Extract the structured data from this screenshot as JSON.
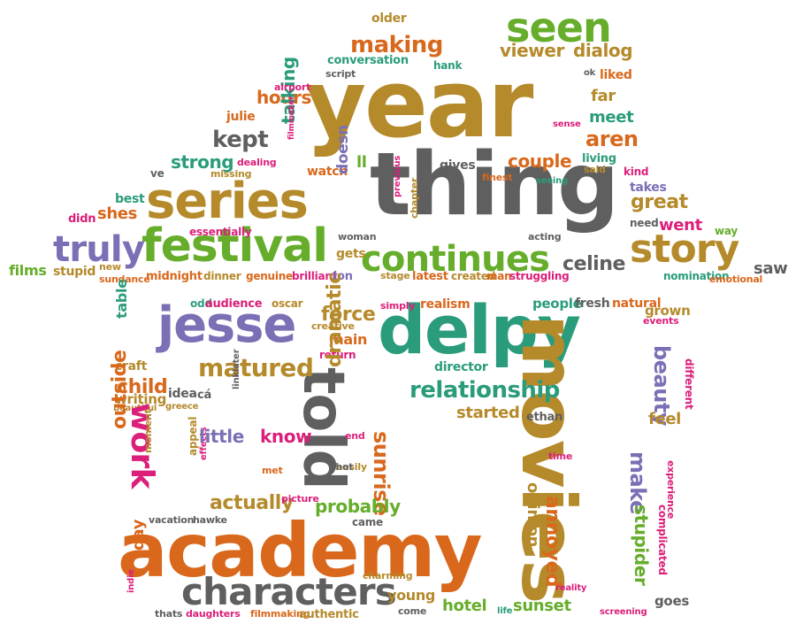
{
  "palette": {
    "olive": "#b58a2b",
    "orange": "#d9681c",
    "green": "#65ad2a",
    "purple": "#7b6fb5",
    "teal": "#2a9c7c",
    "gray": "#5f5f5f",
    "pink": "#dc1f7a"
  },
  "words": [
    {
      "text": "year",
      "color": "olive"
    },
    {
      "text": "thing",
      "color": "gray"
    },
    {
      "text": "series",
      "color": "olive"
    },
    {
      "text": "festival",
      "color": "green"
    },
    {
      "text": "truly",
      "color": "purple"
    },
    {
      "text": "continues",
      "color": "green"
    },
    {
      "text": "story",
      "color": "olive"
    },
    {
      "text": "seen",
      "color": "green"
    },
    {
      "text": "making",
      "color": "orange"
    },
    {
      "text": "viewer",
      "color": "olive"
    },
    {
      "text": "dialog",
      "color": "olive"
    },
    {
      "text": "hours",
      "color": "orange"
    },
    {
      "text": "kept",
      "color": "gray"
    },
    {
      "text": "strong",
      "color": "teal"
    },
    {
      "text": "talking",
      "color": "teal"
    },
    {
      "text": "aren",
      "color": "orange"
    },
    {
      "text": "far",
      "color": "olive"
    },
    {
      "text": "meet",
      "color": "teal"
    },
    {
      "text": "couple",
      "color": "orange"
    },
    {
      "text": "great",
      "color": "olive"
    },
    {
      "text": "went",
      "color": "pink"
    },
    {
      "text": "shes",
      "color": "orange"
    },
    {
      "text": "celine",
      "color": "gray"
    },
    {
      "text": "saw",
      "color": "gray"
    },
    {
      "text": "films",
      "color": "green"
    },
    {
      "text": "stupid",
      "color": "olive"
    },
    {
      "text": "older",
      "color": "olive"
    },
    {
      "text": "conversation",
      "color": "teal"
    },
    {
      "text": "hank",
      "color": "teal"
    },
    {
      "text": "script",
      "color": "gray"
    },
    {
      "text": "liked",
      "color": "orange"
    },
    {
      "text": "ok",
      "color": "gray"
    },
    {
      "text": "airport",
      "color": "pink"
    },
    {
      "text": "julie",
      "color": "orange"
    },
    {
      "text": "watch",
      "color": "orange"
    },
    {
      "text": "ll",
      "color": "green"
    },
    {
      "text": "gives",
      "color": "gray"
    },
    {
      "text": "doesn",
      "color": "purple"
    },
    {
      "text": "living",
      "color": "teal"
    },
    {
      "text": "said",
      "color": "olive"
    },
    {
      "text": "kind",
      "color": "pink"
    },
    {
      "text": "sense",
      "color": "pink"
    },
    {
      "text": "takes",
      "color": "purple"
    },
    {
      "text": "need",
      "color": "gray"
    },
    {
      "text": "way",
      "color": "green"
    },
    {
      "text": "ve",
      "color": "gray"
    },
    {
      "text": "dealing",
      "color": "pink"
    },
    {
      "text": "missing",
      "color": "olive"
    },
    {
      "text": "filmmaker",
      "color": "pink"
    },
    {
      "text": "best",
      "color": "teal"
    },
    {
      "text": "didn",
      "color": "pink"
    },
    {
      "text": "essentially",
      "color": "pink"
    },
    {
      "text": "new",
      "color": "olive"
    },
    {
      "text": "sundance",
      "color": "orange"
    },
    {
      "text": "midnight",
      "color": "orange"
    },
    {
      "text": "dinner",
      "color": "olive"
    },
    {
      "text": "genuine",
      "color": "orange"
    },
    {
      "text": "brilliant",
      "color": "pink"
    },
    {
      "text": "don",
      "color": "purple"
    },
    {
      "text": "stage",
      "color": "olive"
    },
    {
      "text": "latest",
      "color": "orange"
    },
    {
      "text": "created",
      "color": "olive"
    },
    {
      "text": "man",
      "color": "orange"
    },
    {
      "text": "struggling",
      "color": "pink"
    },
    {
      "text": "nomination",
      "color": "teal"
    },
    {
      "text": "emotional",
      "color": "orange"
    },
    {
      "text": "finest",
      "color": "orange"
    },
    {
      "text": "seeing",
      "color": "teal"
    },
    {
      "text": "previous",
      "color": "pink"
    },
    {
      "text": "chapter",
      "color": "olive"
    },
    {
      "text": "woman",
      "color": "gray"
    },
    {
      "text": "gets",
      "color": "olive"
    },
    {
      "text": "acting",
      "color": "gray"
    },
    {
      "text": "jesse",
      "color": "purple"
    },
    {
      "text": "delpy",
      "color": "teal"
    },
    {
      "text": "movies",
      "color": "olive"
    },
    {
      "text": "told",
      "color": "gray"
    },
    {
      "text": "matured",
      "color": "olive"
    },
    {
      "text": "relationship",
      "color": "teal"
    },
    {
      "text": "force",
      "color": "olive"
    },
    {
      "text": "main",
      "color": "orange"
    },
    {
      "text": "return",
      "color": "pink"
    },
    {
      "text": "realism",
      "color": "orange"
    },
    {
      "text": "simply",
      "color": "pink"
    },
    {
      "text": "creative",
      "color": "olive"
    },
    {
      "text": "people",
      "color": "teal"
    },
    {
      "text": "fresh",
      "color": "gray"
    },
    {
      "text": "natural",
      "color": "orange"
    },
    {
      "text": "grown",
      "color": "olive"
    },
    {
      "text": "events",
      "color": "pink"
    },
    {
      "text": "beauty",
      "color": "purple"
    },
    {
      "text": "different",
      "color": "pink"
    },
    {
      "text": "director",
      "color": "teal"
    },
    {
      "text": "started",
      "color": "olive"
    },
    {
      "text": "ethan",
      "color": "gray"
    },
    {
      "text": "feel",
      "color": "olive"
    },
    {
      "text": "make",
      "color": "purple"
    },
    {
      "text": "stupider",
      "color": "green"
    },
    {
      "text": "complicated",
      "color": "pink"
    },
    {
      "text": "experience",
      "color": "pink"
    },
    {
      "text": "time",
      "color": "pink"
    },
    {
      "text": "opinion",
      "color": "olive"
    },
    {
      "text": "annoyed",
      "color": "orange"
    },
    {
      "text": "table",
      "color": "teal"
    },
    {
      "text": "craft",
      "color": "olive"
    },
    {
      "text": "child",
      "color": "orange"
    },
    {
      "text": "writing",
      "color": "olive"
    },
    {
      "text": "beautiful",
      "color": "olive"
    },
    {
      "text": "idea",
      "color": "gray"
    },
    {
      "text": "greece",
      "color": "olive"
    },
    {
      "text": "cá",
      "color": "gray"
    },
    {
      "text": "linklater",
      "color": "gray"
    },
    {
      "text": "odd",
      "color": "teal"
    },
    {
      "text": "audience",
      "color": "pink"
    },
    {
      "text": "oscar",
      "color": "olive"
    },
    {
      "text": "work",
      "color": "pink"
    },
    {
      "text": "outside",
      "color": "orange"
    },
    {
      "text": "moment",
      "color": "olive"
    },
    {
      "text": "appeal",
      "color": "olive"
    },
    {
      "text": "effects",
      "color": "pink"
    },
    {
      "text": "little",
      "color": "purple"
    },
    {
      "text": "know",
      "color": "pink"
    },
    {
      "text": "dramatic",
      "color": "olive"
    },
    {
      "text": "end",
      "color": "pink"
    },
    {
      "text": "easily",
      "color": "olive"
    },
    {
      "text": "sunrise",
      "color": "orange"
    },
    {
      "text": "met",
      "color": "orange"
    },
    {
      "text": "actually",
      "color": "olive"
    },
    {
      "text": "picture",
      "color": "pink"
    },
    {
      "text": "shot",
      "color": "gray"
    },
    {
      "text": "probably",
      "color": "green"
    },
    {
      "text": "came",
      "color": "gray"
    },
    {
      "text": "vacation",
      "color": "gray"
    },
    {
      "text": "hawke",
      "color": "gray"
    },
    {
      "text": "academy",
      "color": "orange"
    },
    {
      "text": "characters",
      "color": "gray"
    },
    {
      "text": "day",
      "color": "orange"
    },
    {
      "text": "indie",
      "color": "pink"
    },
    {
      "text": "charming",
      "color": "olive"
    },
    {
      "text": "young",
      "color": "olive"
    },
    {
      "text": "come",
      "color": "gray"
    },
    {
      "text": "hotel",
      "color": "green"
    },
    {
      "text": "life",
      "color": "teal"
    },
    {
      "text": "sunset",
      "color": "green"
    },
    {
      "text": "reality",
      "color": "pink"
    },
    {
      "text": "screening",
      "color": "pink"
    },
    {
      "text": "goes",
      "color": "gray"
    },
    {
      "text": "thats",
      "color": "gray"
    },
    {
      "text": "daughters",
      "color": "pink"
    },
    {
      "text": "filmmaking",
      "color": "orange"
    },
    {
      "text": "authentic",
      "color": "olive"
    }
  ]
}
